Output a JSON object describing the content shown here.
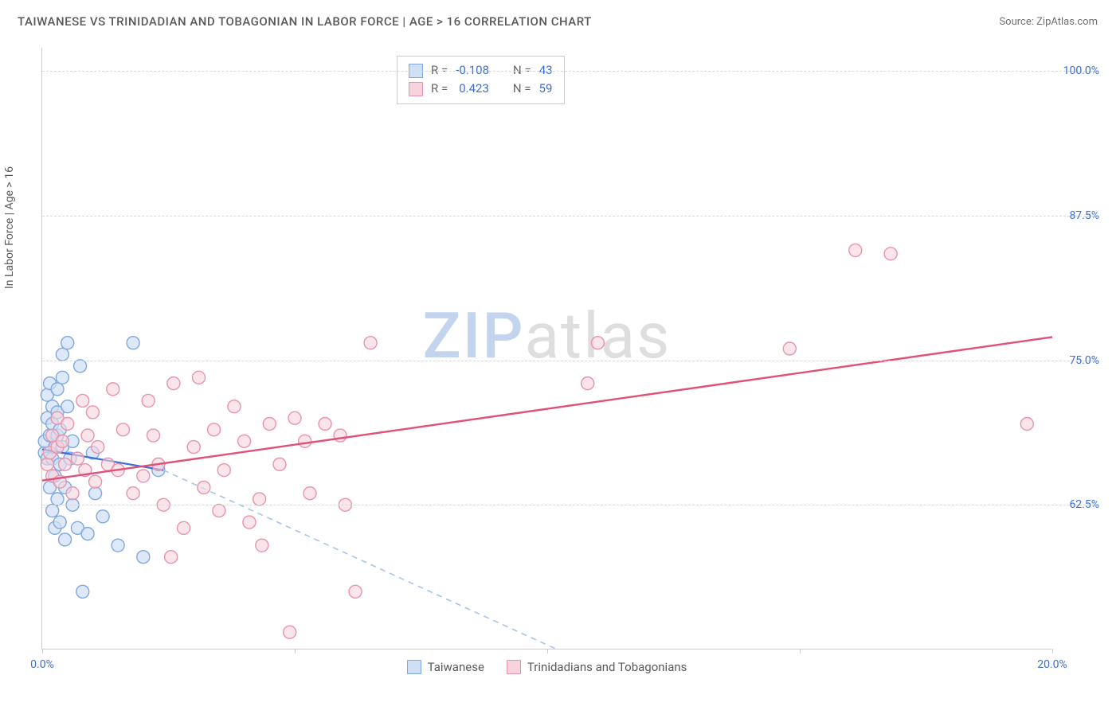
{
  "header": {
    "title": "TAIWANESE VS TRINIDADIAN AND TOBAGONIAN IN LABOR FORCE | AGE > 16 CORRELATION CHART",
    "source_label": "Source:",
    "source_name": "ZipAtlas.com"
  },
  "chart": {
    "type": "scatter",
    "y_axis_label": "In Labor Force | Age > 16",
    "xlim": [
      0,
      20
    ],
    "ylim": [
      50,
      102
    ],
    "x_ticks": [
      0,
      5,
      10,
      15,
      20
    ],
    "x_tick_labels": {
      "0": "0.0%",
      "20": "20.0%"
    },
    "y_gridlines": [
      62.5,
      75.0,
      87.5,
      100.0
    ],
    "y_tick_labels": [
      "62.5%",
      "75.0%",
      "87.5%",
      "100.0%"
    ],
    "grid_color": "#d8d8d8",
    "axis_color": "#cccccc",
    "background_color": "#ffffff",
    "tick_label_color": "#3b6fd6",
    "axis_label_color": "#5a5a5a",
    "watermark": {
      "text_bold": "ZIP",
      "text_rest": "atlas"
    },
    "series": [
      {
        "name": "Taiwanese",
        "marker_fill": "#cfe0f5",
        "marker_stroke": "#7fa8de",
        "marker_fill_opacity": 0.7,
        "marker_radius": 8,
        "line_color": "#3b6fd6",
        "line_width": 2.2,
        "dash_color": "#a8c3e8",
        "r_value": "-0.108",
        "n_value": "43",
        "trend_solid": {
          "x1": 0.0,
          "y1": 67.3,
          "x2": 2.4,
          "y2": 65.5
        },
        "trend_dash": {
          "x1": 2.4,
          "y1": 65.5,
          "x2": 10.2,
          "y2": 50.0
        },
        "points": [
          [
            0.05,
            67
          ],
          [
            0.05,
            68
          ],
          [
            0.1,
            66.5
          ],
          [
            0.1,
            70
          ],
          [
            0.1,
            72
          ],
          [
            0.15,
            64
          ],
          [
            0.15,
            68.5
          ],
          [
            0.15,
            73
          ],
          [
            0.2,
            62
          ],
          [
            0.2,
            66.5
          ],
          [
            0.2,
            69.5
          ],
          [
            0.2,
            71
          ],
          [
            0.25,
            60.5
          ],
          [
            0.25,
            65
          ],
          [
            0.25,
            67.5
          ],
          [
            0.3,
            63
          ],
          [
            0.3,
            68.5
          ],
          [
            0.3,
            70.5
          ],
          [
            0.3,
            72.5
          ],
          [
            0.35,
            61
          ],
          [
            0.35,
            66
          ],
          [
            0.35,
            69
          ],
          [
            0.4,
            73.5
          ],
          [
            0.4,
            75.5
          ],
          [
            0.4,
            67.5
          ],
          [
            0.45,
            59.5
          ],
          [
            0.45,
            64
          ],
          [
            0.5,
            71
          ],
          [
            0.5,
            76.5
          ],
          [
            0.55,
            66.5
          ],
          [
            0.6,
            62.5
          ],
          [
            0.6,
            68
          ],
          [
            0.7,
            60.5
          ],
          [
            0.75,
            74.5
          ],
          [
            0.8,
            55
          ],
          [
            0.9,
            60
          ],
          [
            1.0,
            67
          ],
          [
            1.05,
            63.5
          ],
          [
            1.2,
            61.5
          ],
          [
            1.5,
            59
          ],
          [
            1.8,
            76.5
          ],
          [
            2.0,
            58
          ],
          [
            2.3,
            65.5
          ]
        ]
      },
      {
        "name": "Trinidadians and Tobagonians",
        "marker_fill": "#f7d3dd",
        "marker_stroke": "#e893ab",
        "marker_fill_opacity": 0.6,
        "marker_radius": 8,
        "line_color": "#e15078",
        "line_width": 2.4,
        "r_value": "0.423",
        "n_value": "59",
        "trend_solid": {
          "x1": 0.0,
          "y1": 64.6,
          "x2": 20.0,
          "y2": 77.0
        },
        "points": [
          [
            0.1,
            66
          ],
          [
            0.15,
            67
          ],
          [
            0.2,
            68.5
          ],
          [
            0.2,
            65
          ],
          [
            0.3,
            67.5
          ],
          [
            0.3,
            70
          ],
          [
            0.35,
            64.5
          ],
          [
            0.4,
            68
          ],
          [
            0.45,
            66
          ],
          [
            0.5,
            69.5
          ],
          [
            0.6,
            63.5
          ],
          [
            0.7,
            66.5
          ],
          [
            0.8,
            71.5
          ],
          [
            0.85,
            65.5
          ],
          [
            0.9,
            68.5
          ],
          [
            1.0,
            70.5
          ],
          [
            1.05,
            64.5
          ],
          [
            1.1,
            67.5
          ],
          [
            1.3,
            66.0
          ],
          [
            1.4,
            72.5
          ],
          [
            1.5,
            65.5
          ],
          [
            1.6,
            69.0
          ],
          [
            1.8,
            63.5
          ],
          [
            2.0,
            65.0
          ],
          [
            2.1,
            71.5
          ],
          [
            2.2,
            68.5
          ],
          [
            2.3,
            66.0
          ],
          [
            2.4,
            62.5
          ],
          [
            2.55,
            58
          ],
          [
            2.6,
            73.0
          ],
          [
            2.8,
            60.5
          ],
          [
            3.0,
            67.5
          ],
          [
            3.1,
            73.5
          ],
          [
            3.2,
            64
          ],
          [
            3.4,
            69
          ],
          [
            3.5,
            62
          ],
          [
            3.6,
            65.5
          ],
          [
            3.8,
            71
          ],
          [
            4.0,
            68
          ],
          [
            4.1,
            61
          ],
          [
            4.3,
            63
          ],
          [
            4.35,
            59
          ],
          [
            4.5,
            69.5
          ],
          [
            4.7,
            66
          ],
          [
            4.9,
            51.5
          ],
          [
            5.0,
            70
          ],
          [
            5.2,
            68
          ],
          [
            5.3,
            63.5
          ],
          [
            5.6,
            69.5
          ],
          [
            5.9,
            68.5
          ],
          [
            6.0,
            62.5
          ],
          [
            6.2,
            55
          ],
          [
            6.5,
            76.5
          ],
          [
            10.8,
            73
          ],
          [
            11.0,
            76.5
          ],
          [
            14.8,
            76
          ],
          [
            16.1,
            84.5
          ],
          [
            16.8,
            84.2
          ],
          [
            19.5,
            69.5
          ]
        ]
      }
    ],
    "legend_top": {
      "r_label": "R =",
      "n_label": "N ="
    },
    "legend_bottom": {
      "items": [
        "Taiwanese",
        "Trinidadians and Tobagonians"
      ]
    }
  }
}
